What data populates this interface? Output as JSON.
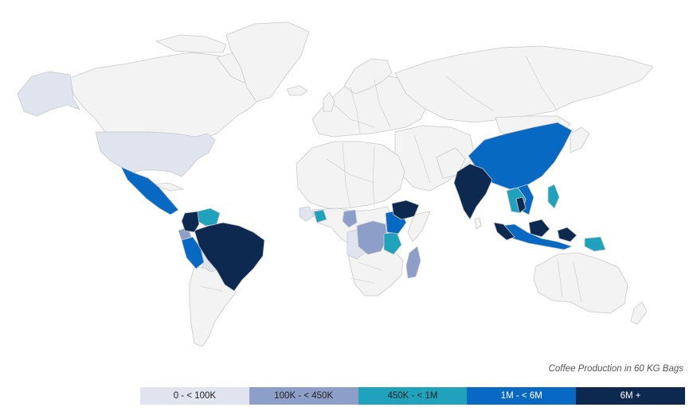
{
  "legend": {
    "caption": "Coffee Production in 60 KG Bags",
    "items": [
      {
        "label": "0 - < 100K",
        "color": "#dfe4ef",
        "dark": false
      },
      {
        "label": "100K - < 450K",
        "color": "#8d9fc9",
        "dark": false
      },
      {
        "label": "450K - < 1M",
        "color": "#20a2bd",
        "dark": false
      },
      {
        "label": "1M - < 6M",
        "color": "#0869c2",
        "dark": true
      },
      {
        "label": "6M +",
        "color": "#0d2950",
        "dark": true
      }
    ]
  },
  "colors": {
    "no_data": "#f3f3f3",
    "border": "#c9c9c9",
    "background": "#ffffff"
  }
}
